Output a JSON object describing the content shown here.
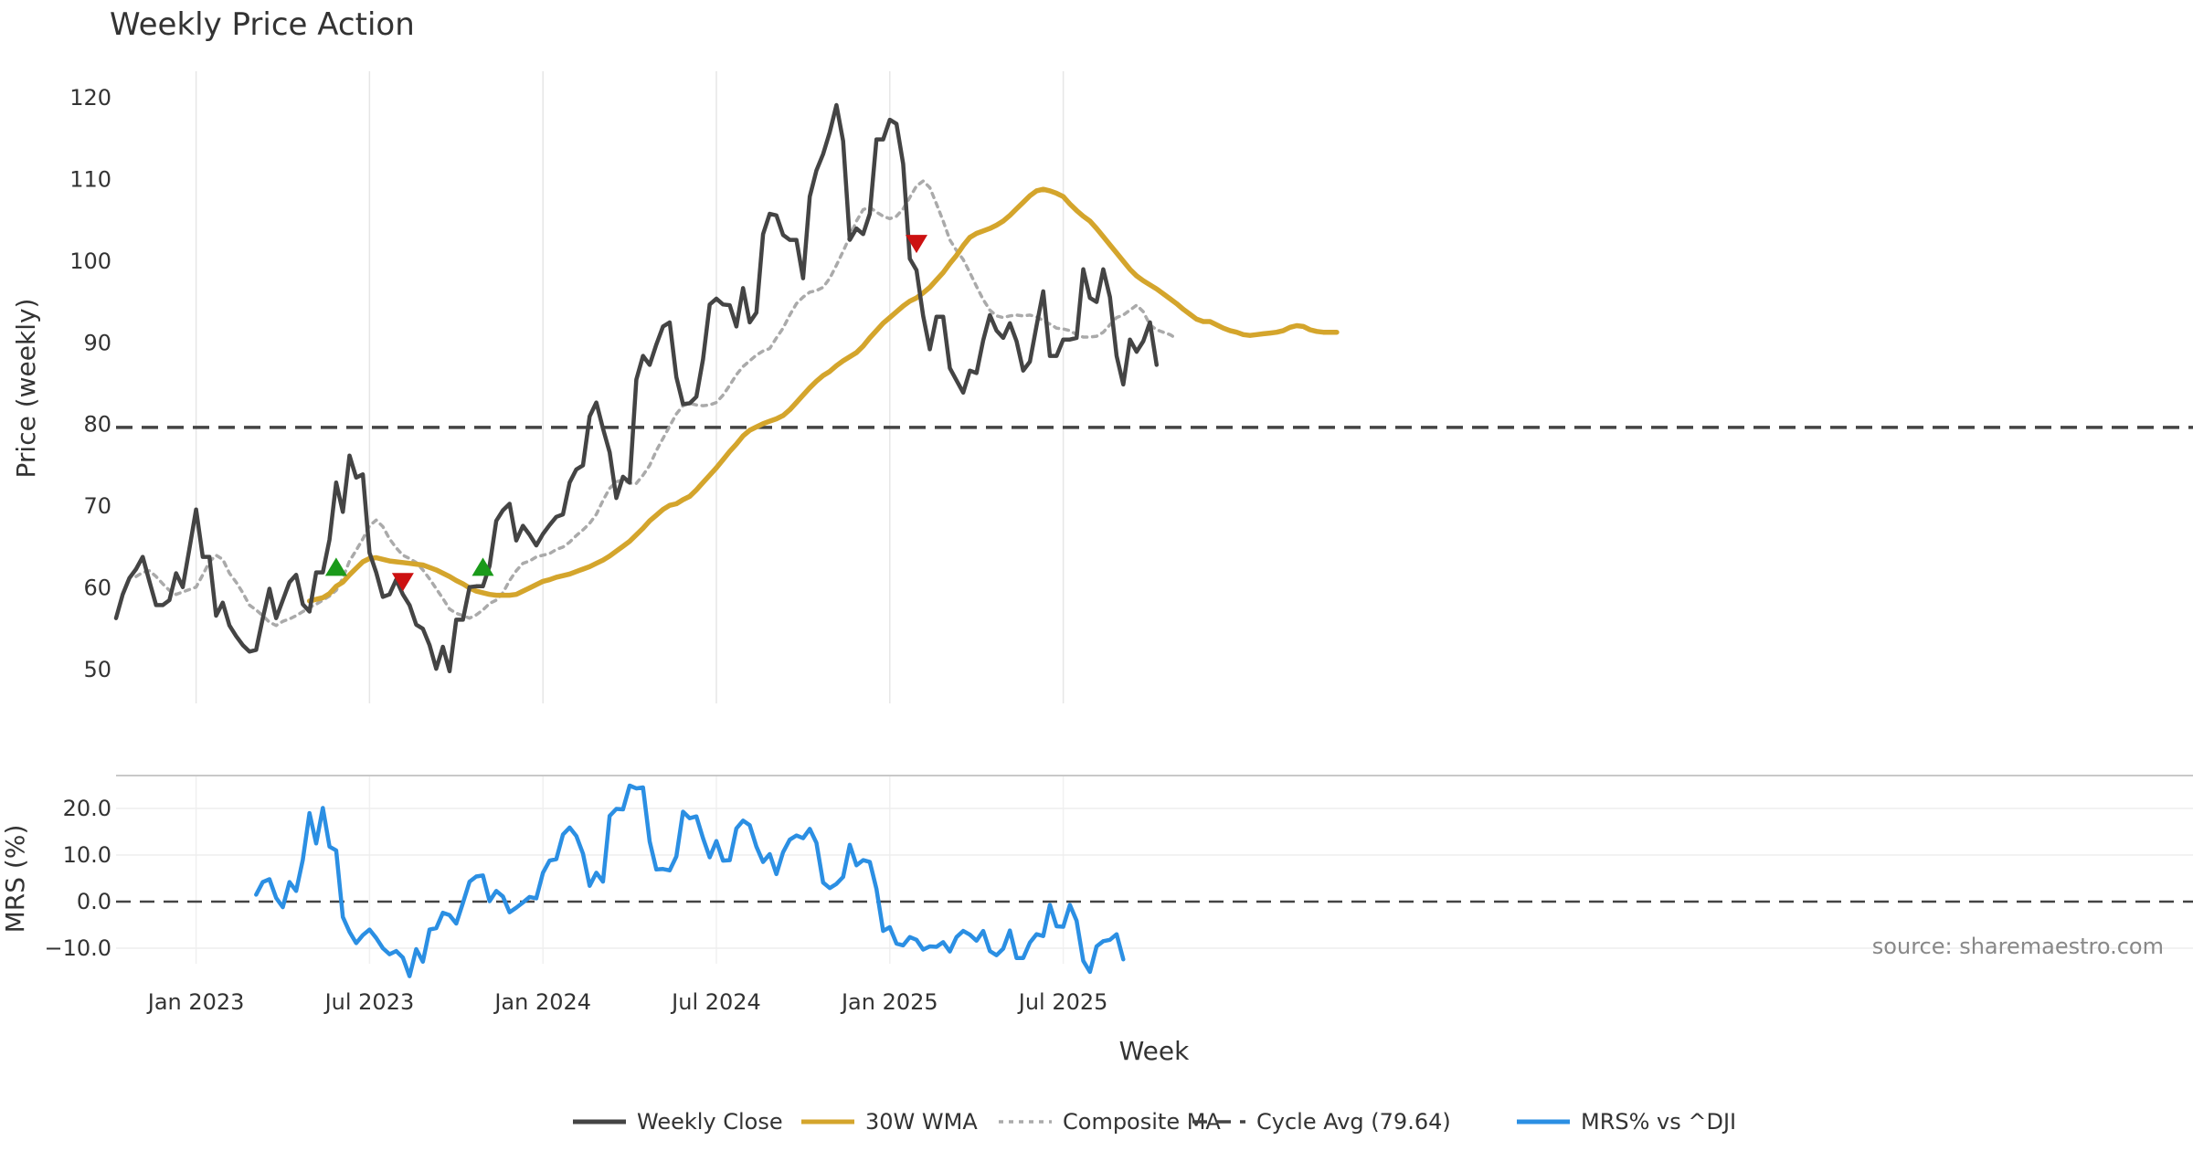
{
  "chart_data": {
    "type": "line",
    "title": "Weekly Price Action",
    "xlabel": "Week",
    "x_ticks": [
      "Jan 2023",
      "Jul 2023",
      "Jan 2024",
      "Jul 2024",
      "Jan 2025",
      "Jul 2025"
    ],
    "source": "source: sharemaestro.com",
    "price_panel": {
      "ylabel": "Price (weekly)",
      "ylim": [
        45,
        123
      ],
      "yticks": [
        "50",
        "60",
        "70",
        "80",
        "90",
        "100",
        "110",
        "120"
      ],
      "cycle_avg": 79.64,
      "series": [
        {
          "name": "Weekly Close",
          "color": "#444444",
          "start_week": 0,
          "values": [
            56.3,
            59.2,
            61.2,
            62.3,
            63.8,
            60.8,
            57.9,
            57.9,
            58.5,
            61.8,
            60.1,
            64.8,
            69.6,
            63.8,
            63.8,
            56.6,
            58.2,
            55.4,
            54.1,
            53.0,
            52.2,
            52.4,
            56.3,
            59.9,
            56.3,
            58.5,
            60.7,
            61.6,
            58.0,
            57.1,
            61.9,
            61.9,
            65.9,
            72.9,
            69.3,
            76.2,
            73.5,
            73.9,
            64.3,
            61.9,
            58.9,
            59.2,
            61.0,
            59.2,
            57.9,
            55.5,
            55.0,
            53.0,
            50.1,
            52.8,
            49.8,
            56.1,
            56.1,
            60.1,
            60.2,
            60.2,
            62.7,
            68.2,
            69.5,
            70.3,
            65.8,
            67.6,
            66.5,
            65.2,
            66.6,
            67.7,
            68.7,
            69.0,
            72.9,
            74.5,
            75.0,
            81.0,
            82.7,
            79.5,
            76.6,
            71.0,
            73.6,
            72.9,
            85.5,
            88.4,
            87.3,
            89.8,
            92.0,
            92.5,
            85.8,
            82.5,
            82.6,
            83.4,
            88.0,
            94.7,
            95.4,
            94.7,
            94.6,
            92.0,
            96.7,
            92.5,
            93.7,
            103.3,
            105.8,
            105.6,
            103.2,
            102.6,
            102.6,
            97.9,
            107.9,
            111.1,
            113.1,
            115.8,
            119.1,
            114.7,
            102.6,
            104.0,
            103.3,
            105.8,
            114.9,
            114.9,
            117.3,
            116.8,
            111.9,
            100.3,
            98.9,
            93.3,
            89.2,
            93.2,
            93.2,
            86.9,
            85.4,
            83.9,
            86.6,
            86.3,
            90.3,
            93.4,
            91.5,
            90.6,
            92.4,
            90.2,
            86.6,
            87.7,
            92.1,
            96.3,
            88.4,
            88.4,
            90.4,
            90.4,
            90.6,
            99.0,
            95.5,
            95.0,
            99.0,
            95.6,
            88.4,
            84.9,
            90.4,
            88.9,
            90.2,
            92.5,
            87.3
          ]
        },
        {
          "name": "30W WMA",
          "color": "#d4a52c",
          "start_week": 29,
          "values": [
            58.4,
            58.6,
            58.8,
            59.3,
            60.2,
            60.7,
            61.6,
            62.4,
            63.2,
            63.6,
            63.7,
            63.5,
            63.3,
            63.2,
            63.1,
            63.0,
            62.9,
            62.8,
            62.5,
            62.2,
            61.8,
            61.4,
            60.9,
            60.5,
            60.0,
            59.6,
            59.4,
            59.2,
            59.1,
            59.1,
            59.1,
            59.2,
            59.6,
            60.0,
            60.4,
            60.8,
            61.0,
            61.3,
            61.5,
            61.7,
            62.0,
            62.3,
            62.6,
            63.0,
            63.4,
            63.9,
            64.5,
            65.1,
            65.7,
            66.5,
            67.3,
            68.2,
            68.9,
            69.6,
            70.1,
            70.3,
            70.8,
            71.2,
            72.0,
            72.9,
            73.8,
            74.7,
            75.7,
            76.7,
            77.6,
            78.6,
            79.3,
            79.7,
            80.1,
            80.4,
            80.7,
            81.1,
            81.8,
            82.7,
            83.6,
            84.5,
            85.3,
            86.0,
            86.5,
            87.2,
            87.8,
            88.3,
            88.8,
            89.6,
            90.6,
            91.5,
            92.4,
            93.1,
            93.8,
            94.5,
            95.1,
            95.5,
            96.1,
            96.8,
            97.7,
            98.6,
            99.7,
            100.7,
            101.9,
            102.9,
            103.4,
            103.7,
            104.0,
            104.4,
            104.9,
            105.6,
            106.4,
            107.2,
            108.0,
            108.6,
            108.8,
            108.6,
            108.3,
            107.9,
            107.0,
            106.2,
            105.5,
            104.9,
            104.0,
            103.0,
            102.0,
            101.0,
            100.0,
            99.0,
            98.2,
            97.6,
            97.1,
            96.6,
            96.0,
            95.4,
            94.8,
            94.1,
            93.5,
            92.9,
            92.6,
            92.6,
            92.2,
            91.8,
            91.5,
            91.3,
            91.0,
            90.9,
            91.0,
            91.1,
            91.2,
            91.3,
            91.5,
            91.9,
            92.1,
            92.0,
            91.6,
            91.4,
            91.3,
            91.3,
            91.3
          ]
        },
        {
          "name": "Composite MA",
          "color": "#aaaaaa",
          "start_week": 3,
          "values": [
            61.4,
            61.9,
            62.1,
            61.4,
            60.5,
            59.7,
            59.2,
            59.5,
            59.8,
            60.1,
            61.6,
            63.2,
            64.0,
            63.5,
            61.8,
            60.7,
            59.4,
            57.9,
            57.3,
            56.6,
            55.8,
            55.4,
            55.9,
            56.2,
            56.6,
            57.1,
            57.6,
            58.0,
            58.5,
            59.0,
            59.7,
            61.2,
            63.3,
            64.6,
            66.0,
            67.6,
            68.3,
            67.5,
            66.0,
            64.9,
            64.0,
            63.6,
            63.1,
            62.2,
            61.1,
            59.9,
            58.7,
            57.4,
            56.9,
            56.6,
            56.3,
            56.7,
            57.3,
            58.1,
            58.5,
            59.4,
            60.9,
            62.1,
            63.0,
            63.3,
            63.8,
            64.0,
            64.2,
            64.7,
            65.0,
            65.6,
            66.4,
            67.1,
            67.9,
            69.0,
            70.7,
            72.2,
            73.0,
            73.2,
            72.8,
            72.8,
            73.8,
            75.0,
            76.8,
            78.3,
            79.8,
            81.3,
            82.3,
            82.6,
            82.4,
            82.3,
            82.4,
            82.7,
            83.6,
            84.8,
            86.1,
            87.1,
            87.8,
            88.5,
            89.0,
            89.3,
            90.6,
            91.8,
            93.4,
            94.8,
            95.6,
            96.2,
            96.4,
            96.8,
            97.9,
            99.5,
            101.2,
            103.0,
            104.9,
            106.3,
            106.6,
            106.0,
            105.5,
            105.2,
            105.5,
            106.4,
            107.8,
            109.2,
            109.8,
            109.0,
            107.0,
            104.9,
            102.6,
            101.3,
            100.2,
            98.6,
            96.9,
            95.3,
            94.0,
            93.3,
            93.1,
            93.3,
            93.4,
            93.3,
            93.4,
            93.2,
            92.7,
            92.3,
            91.8,
            91.7,
            91.5,
            91.0,
            90.7,
            90.7,
            90.8,
            91.3,
            92.2,
            93.1,
            93.4,
            94.0,
            94.6,
            93.8,
            92.2,
            91.6,
            91.3,
            91.0,
            90.5
          ]
        }
      ],
      "signals": [
        {
          "type": "buy",
          "week": 33,
          "value": 62.6
        },
        {
          "type": "sell",
          "week": 43,
          "value": 60.7
        },
        {
          "type": "buy",
          "week": 55,
          "value": 62.6
        },
        {
          "type": "sell",
          "week": 120,
          "value": 102.1
        }
      ]
    },
    "mrs_panel": {
      "ylabel": "MRS (%)",
      "ylim": [
        -17,
        26
      ],
      "yticks": [
        "20.0",
        "10.0",
        "0.0",
        "−10.0"
      ],
      "series": [
        {
          "name": "MRS% vs ^DJI",
          "color": "#2b8fe3",
          "start_week": 21,
          "values": [
            1.5,
            4.2,
            4.8,
            0.8,
            -1.2,
            4.2,
            2.3,
            9.0,
            19.0,
            12.5,
            20.1,
            11.8,
            11.0,
            -3.3,
            -6.5,
            -8.9,
            -7.2,
            -6.0,
            -7.8,
            -10.0,
            -11.3,
            -10.6,
            -12.0,
            -16.0,
            -10.2,
            -12.9,
            -6.0,
            -5.7,
            -2.4,
            -2.9,
            -4.7,
            -0.3,
            4.3,
            5.4,
            5.6,
            0.1,
            2.3,
            1.1,
            -2.3,
            -1.3,
            -0.2,
            1.0,
            0.7,
            6.2,
            8.8,
            9.1,
            14.4,
            15.9,
            14.1,
            10.3,
            3.4,
            6.2,
            4.3,
            18.4,
            19.9,
            19.8,
            24.9,
            24.3,
            24.5,
            12.9,
            6.9,
            7.0,
            6.7,
            9.7,
            19.3,
            17.9,
            18.3,
            13.6,
            9.5,
            13.0,
            8.8,
            8.9,
            15.7,
            17.4,
            16.4,
            11.8,
            8.5,
            10.2,
            5.9,
            10.6,
            13.3,
            14.2,
            13.6,
            15.6,
            12.6,
            4.1,
            2.9,
            3.8,
            5.3,
            12.2,
            7.8,
            8.9,
            8.5,
            2.7,
            -6.3,
            -5.5,
            -9.0,
            -9.4,
            -7.6,
            -8.2,
            -10.3,
            -9.6,
            -9.7,
            -8.7,
            -10.7,
            -7.6,
            -6.3,
            -7.1,
            -8.4,
            -6.3,
            -10.6,
            -11.5,
            -10.1,
            -6.2,
            -12.1,
            -12.1,
            -8.8,
            -7.0,
            -7.4,
            -0.7,
            -5.3,
            -5.4,
            -0.7,
            -4.1,
            -12.7,
            -15.1,
            -9.6,
            -8.5,
            -8.2,
            -7.0,
            -12.4
          ]
        }
      ]
    },
    "legend": {
      "placement": "bottom-center",
      "items": [
        {
          "label": "Weekly Close",
          "style": "solid",
          "color": "#444444"
        },
        {
          "label": "30W WMA",
          "style": "solid",
          "color": "#d4a52c"
        },
        {
          "label": "Composite MA",
          "style": "dotted",
          "color": "#aaaaaa"
        },
        {
          "label": "Cycle Avg (79.64)",
          "style": "dashed",
          "color": "#444444"
        },
        {
          "label": "MRS% vs ^DJI",
          "style": "solid",
          "color": "#2b8fe3"
        }
      ]
    },
    "colors": {
      "buy_signal": "#1a9a1a",
      "sell_signal": "#cc1111",
      "grid": "#e6e6e6"
    }
  }
}
